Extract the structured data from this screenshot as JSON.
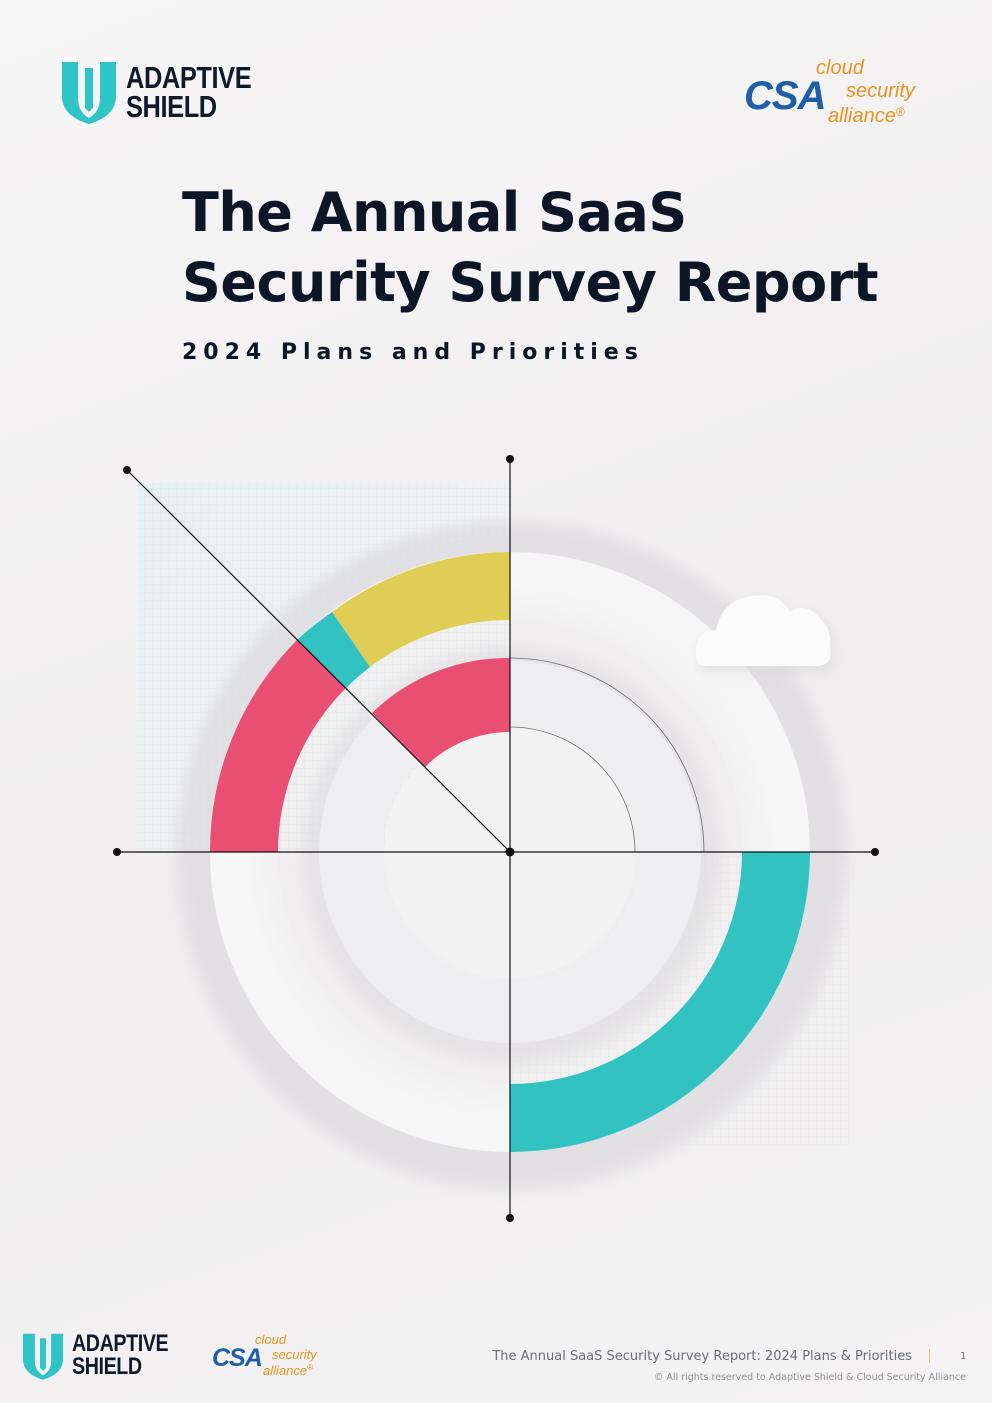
{
  "header": {
    "adaptive_shield": {
      "line1": "ADAPTIVE",
      "line2": "SHIELD"
    },
    "csa": {
      "mark": "CSA",
      "word1": "cloud",
      "word2": "security",
      "word3": "alliance",
      "reg": "®"
    }
  },
  "cover": {
    "title_line1": "The Annual SaaS",
    "title_line2": "Security Survey Report",
    "subtitle": "2024 Plans and Priorities"
  },
  "footer": {
    "adaptive_shield": {
      "line1": "ADAPTIVE",
      "line2": "SHIELD"
    },
    "csa": {
      "mark": "CSA",
      "word1": "cloud",
      "word2": "security",
      "word3": "alliance",
      "reg": "®"
    },
    "report_title": "The Annual SaaS Security Survey Report: 2024 Plans & Priorities",
    "page_number": "1",
    "copyright": "© All rights reserved to Adaptive Shield & Cloud Security Alliance"
  },
  "colors": {
    "navy": "#0d1626",
    "teal": "#33c2c2",
    "pink": "#e94f72",
    "yellow": "#dfcd55",
    "csa_blue": "#1d5fa8",
    "csa_orange": "#e8941f"
  },
  "icons": [
    "shield-logo-icon",
    "csa-logo-icon",
    "cloud-icon"
  ]
}
